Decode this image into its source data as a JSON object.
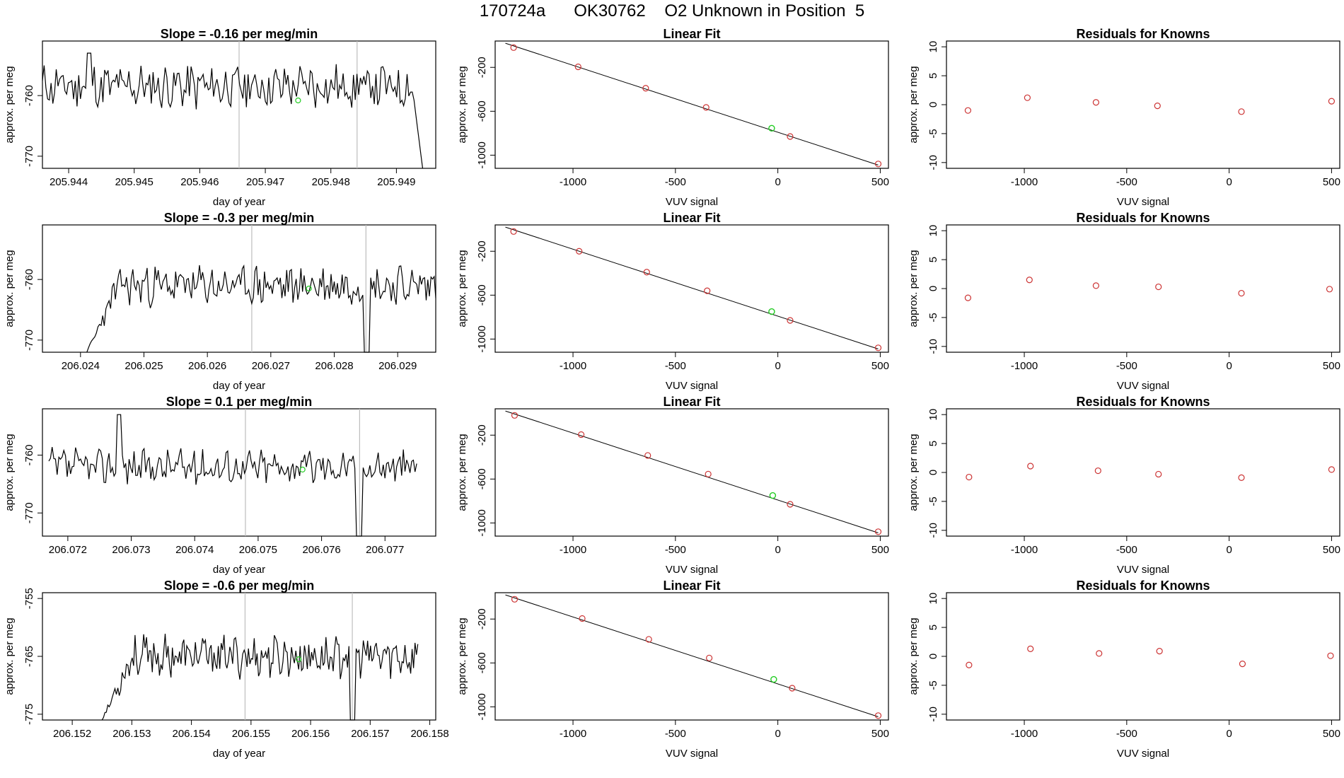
{
  "page_title": "170724a      OK30762    O2 Unknown in Position  5",
  "colors": {
    "trace": "#000000",
    "fit_line": "#000000",
    "known_point": "#cc3333",
    "unknown_point": "#22cc22",
    "marker_line": "#bdbdbd",
    "frame": "#000000"
  },
  "chart_data": [
    {
      "type": "line",
      "title": "Slope =  -0.16  per meg/min",
      "xlabel": "day of year",
      "ylabel": "approx. per meg",
      "xlim": [
        205.9436,
        205.9496
      ],
      "ylim": [
        -772,
        -751
      ],
      "xticks": [
        205.944,
        205.945,
        205.946,
        205.947,
        205.948,
        205.949
      ],
      "xtick_labels": [
        "205.944",
        "205.945",
        "205.946",
        "205.947",
        "205.948",
        "205.949"
      ],
      "yticks": [
        -760,
        -770
      ],
      "ytick_labels": [
        "-760",
        "-770"
      ],
      "vlines": [
        205.9466,
        205.9484
      ],
      "series": [
        {
          "x_start": 205.9436,
          "x_end": 205.9494,
          "noise_amp": 3.2,
          "baseline": -758.5,
          "seed": 11,
          "end_drop_to": -772,
          "spike_at": 205.9443,
          "spike_value": -753
        }
      ],
      "unknown_marker": [
        205.9475,
        -760.8
      ]
    },
    {
      "type": "scatter",
      "title": "Linear Fit",
      "xlabel": "VUV signal",
      "ylabel": "approx. per meg",
      "xlim": [
        -1380,
        540
      ],
      "ylim": [
        -1120,
        40
      ],
      "xticks": [
        -1000,
        -500,
        0,
        500
      ],
      "xtick_labels": [
        "-1000",
        "-500",
        "0",
        "500"
      ],
      "yticks": [
        -200,
        -600,
        -1000
      ],
      "ytick_labels": [
        "-200",
        "-600",
        "-1000"
      ],
      "fit_line": [
        [
          -1330,
          20
        ],
        [
          490,
          -1090
        ]
      ],
      "known_points": [
        [
          -1290,
          -20
        ],
        [
          -975,
          -195
        ],
        [
          -645,
          -390
        ],
        [
          -350,
          -565
        ],
        [
          60,
          -830
        ],
        [
          490,
          -1080
        ]
      ],
      "unknown_point": [
        -30,
        -755
      ]
    },
    {
      "type": "scatter",
      "title": "Residuals for Knowns",
      "xlabel": "VUV signal",
      "ylabel": "approx. per meg",
      "xlim": [
        -1380,
        540
      ],
      "ylim": [
        -11,
        11
      ],
      "xticks": [
        -1000,
        -500,
        0,
        500
      ],
      "xtick_labels": [
        "-1000",
        "-500",
        "0",
        "500"
      ],
      "yticks": [
        10,
        5,
        0,
        -5,
        -10
      ],
      "ytick_labels": [
        "10",
        "5",
        "0",
        "-5",
        "-10"
      ],
      "points": [
        [
          -1275,
          -1.0
        ],
        [
          -985,
          1.2
        ],
        [
          -650,
          0.4
        ],
        [
          -350,
          -0.2
        ],
        [
          60,
          -1.2
        ],
        [
          500,
          0.6
        ]
      ]
    },
    {
      "type": "line",
      "title": "Slope =  -0.3  per meg/min",
      "xlabel": "day of year",
      "ylabel": "approx. per meg",
      "xlim": [
        206.0234,
        206.0296
      ],
      "ylim": [
        -772,
        -751
      ],
      "xticks": [
        206.025,
        206.026,
        206.027,
        206.028,
        206.029
      ],
      "xtick_labels": [
        "206.025",
        "206.026",
        "206.027",
        "206.028",
        "206.029"
      ],
      "ytick_minor": 206.024,
      "ytick_minor_label": "206.024",
      "yticks": [
        -760,
        -770
      ],
      "ytick_labels": [
        "-760",
        "-770"
      ],
      "vlines": [
        206.0267,
        206.0285
      ],
      "series": [
        {
          "x_start": 206.0241,
          "x_end": 206.0296,
          "noise_amp": 2.8,
          "baseline": -761,
          "seed": 23,
          "start_rise_from": -772,
          "rise_until": 206.0246,
          "dip_at": 206.0285,
          "dip_value": -772
        }
      ],
      "unknown_marker": [
        206.0276,
        -761.5
      ]
    },
    {
      "type": "scatter",
      "title": "Linear Fit",
      "xlabel": "VUV signal",
      "ylabel": "approx. per meg",
      "xlim": [
        -1380,
        540
      ],
      "ylim": [
        -1120,
        40
      ],
      "xticks": [
        -1000,
        -500,
        0,
        500
      ],
      "xtick_labels": [
        "-1000",
        "-500",
        "0",
        "500"
      ],
      "yticks": [
        -200,
        -600,
        -1000
      ],
      "ytick_labels": [
        "-200",
        "-600",
        "-1000"
      ],
      "fit_line": [
        [
          -1330,
          20
        ],
        [
          490,
          -1090
        ]
      ],
      "known_points": [
        [
          -1290,
          -20
        ],
        [
          -970,
          -200
        ],
        [
          -640,
          -390
        ],
        [
          -345,
          -560
        ],
        [
          60,
          -830
        ],
        [
          490,
          -1080
        ]
      ],
      "unknown_point": [
        -30,
        -750
      ]
    },
    {
      "type": "scatter",
      "title": "Residuals for Knowns",
      "xlabel": "VUV signal",
      "ylabel": "approx. per meg",
      "xlim": [
        -1380,
        540
      ],
      "ylim": [
        -11,
        11
      ],
      "xticks": [
        -1000,
        -500,
        0,
        500
      ],
      "xtick_labels": [
        "-1000",
        "-500",
        "0",
        "500"
      ],
      "yticks": [
        10,
        5,
        0,
        -5,
        -10
      ],
      "ytick_labels": [
        "10",
        "5",
        "0",
        "-5",
        "-10"
      ],
      "points": [
        [
          -1275,
          -1.6
        ],
        [
          -975,
          1.5
        ],
        [
          -650,
          0.5
        ],
        [
          -345,
          0.3
        ],
        [
          60,
          -0.8
        ],
        [
          490,
          -0.1
        ]
      ]
    },
    {
      "type": "line",
      "title": "Slope =  0.1  per meg/min",
      "xlabel": "day of year",
      "ylabel": "approx. per meg",
      "xlim": [
        206.0716,
        206.0778
      ],
      "ylim": [
        -774,
        -752
      ],
      "xticks": [
        206.072,
        206.073,
        206.074,
        206.075,
        206.076,
        206.077
      ],
      "xtick_labels": [
        "206.072",
        "206.073",
        "206.074",
        "206.075",
        "206.076",
        "206.077"
      ],
      "yticks": [
        -760,
        -770
      ],
      "ytick_labels": [
        "-760",
        "-770"
      ],
      "vlines": [
        206.0748,
        206.0766
      ],
      "series": [
        {
          "x_start": 206.0717,
          "x_end": 206.0775,
          "noise_amp": 2.6,
          "baseline": -762,
          "seed": 37,
          "spike_at": 206.0728,
          "spike_value": -753,
          "dip_at": 206.0766,
          "dip_value": -774
        }
      ],
      "unknown_marker": [
        206.0757,
        -762.5
      ]
    },
    {
      "type": "scatter",
      "title": "Linear Fit",
      "xlabel": "VUV signal",
      "ylabel": "approx. per meg",
      "xlim": [
        -1380,
        540
      ],
      "ylim": [
        -1120,
        40
      ],
      "xticks": [
        -1000,
        -500,
        0,
        500
      ],
      "xtick_labels": [
        "-1000",
        "-500",
        "0",
        "500"
      ],
      "yticks": [
        -200,
        -600,
        -1000
      ],
      "ytick_labels": [
        "-200",
        "-600",
        "-1000"
      ],
      "fit_line": [
        [
          -1330,
          20
        ],
        [
          490,
          -1090
        ]
      ],
      "known_points": [
        [
          -1285,
          -20
        ],
        [
          -960,
          -195
        ],
        [
          -635,
          -385
        ],
        [
          -340,
          -555
        ],
        [
          60,
          -830
        ],
        [
          490,
          -1080
        ]
      ],
      "unknown_point": [
        -25,
        -750
      ]
    },
    {
      "type": "scatter",
      "title": "Residuals for Knowns",
      "xlabel": "VUV signal",
      "ylabel": "approx. per meg",
      "xlim": [
        -1380,
        540
      ],
      "ylim": [
        -11,
        11
      ],
      "xticks": [
        -1000,
        -500,
        0,
        500
      ],
      "xtick_labels": [
        "-1000",
        "-500",
        "0",
        "500"
      ],
      "points": [
        [
          -1270,
          -0.8
        ],
        [
          -970,
          1.1
        ],
        [
          -640,
          0.3
        ],
        [
          -345,
          -0.3
        ],
        [
          60,
          -0.9
        ],
        [
          500,
          0.5
        ]
      ],
      "yticks": [
        10,
        5,
        0,
        -5,
        -10
      ],
      "ytick_labels": [
        "10",
        "5",
        "0",
        "-5",
        "-10"
      ]
    },
    {
      "type": "line",
      "title": "Slope =  -0.6  per meg/min",
      "xlabel": "day of year",
      "ylabel": "approx. per meg",
      "xlim": [
        206.1515,
        206.1581
      ],
      "ylim": [
        -776,
        -754
      ],
      "xticks": [
        206.152,
        206.153,
        206.154,
        206.155,
        206.156,
        206.157,
        206.158
      ],
      "xtick_labels": [
        "206.152",
        "206.153",
        "206.154",
        "206.155",
        "206.156",
        "206.157",
        "206.158"
      ],
      "yticks": [
        -755,
        -765,
        -775
      ],
      "ytick_labels": [
        "-755",
        "-765",
        "-775"
      ],
      "vlines": [
        206.1549,
        206.1567
      ],
      "series": [
        {
          "x_start": 206.1525,
          "x_end": 206.1578,
          "noise_amp": 3.0,
          "baseline": -765,
          "seed": 53,
          "start_rise_from": -776,
          "rise_until": 206.153,
          "dip_at": 206.1567,
          "dip_value": -776
        }
      ],
      "unknown_marker": [
        206.1558,
        -765.5
      ]
    },
    {
      "type": "scatter",
      "title": "Linear Fit",
      "xlabel": "VUV signal",
      "ylabel": "approx. per meg",
      "xlim": [
        -1380,
        540
      ],
      "ylim": [
        -1120,
        40
      ],
      "xticks": [
        -1000,
        -500,
        0,
        500
      ],
      "xtick_labels": [
        "-1000",
        "-500",
        "0",
        "500"
      ],
      "yticks": [
        -200,
        -600,
        -1000
      ],
      "ytick_labels": [
        "-200",
        "-600",
        "-1000"
      ],
      "fit_line": [
        [
          -1330,
          20
        ],
        [
          490,
          -1090
        ]
      ],
      "known_points": [
        [
          -1285,
          -20
        ],
        [
          -955,
          -195
        ],
        [
          -630,
          -385
        ],
        [
          -335,
          -555
        ],
        [
          70,
          -830
        ],
        [
          490,
          -1080
        ]
      ],
      "unknown_point": [
        -20,
        -750
      ]
    },
    {
      "type": "scatter",
      "title": "Residuals for Knowns",
      "xlabel": "VUV signal",
      "ylabel": "approx. per meg",
      "xlim": [
        -1380,
        540
      ],
      "ylim": [
        -11,
        11
      ],
      "xticks": [
        -1000,
        -500,
        0,
        500
      ],
      "xtick_labels": [
        "-1000",
        "-500",
        "0",
        "500"
      ],
      "yticks": [
        10,
        5,
        0,
        -5,
        -10
      ],
      "ytick_labels": [
        "10",
        "5",
        "0",
        "-5",
        "-10"
      ],
      "points": [
        [
          -1270,
          -1.5
        ],
        [
          -970,
          1.3
        ],
        [
          -635,
          0.5
        ],
        [
          -340,
          0.9
        ],
        [
          65,
          -1.3
        ],
        [
          495,
          0.1
        ]
      ]
    }
  ]
}
